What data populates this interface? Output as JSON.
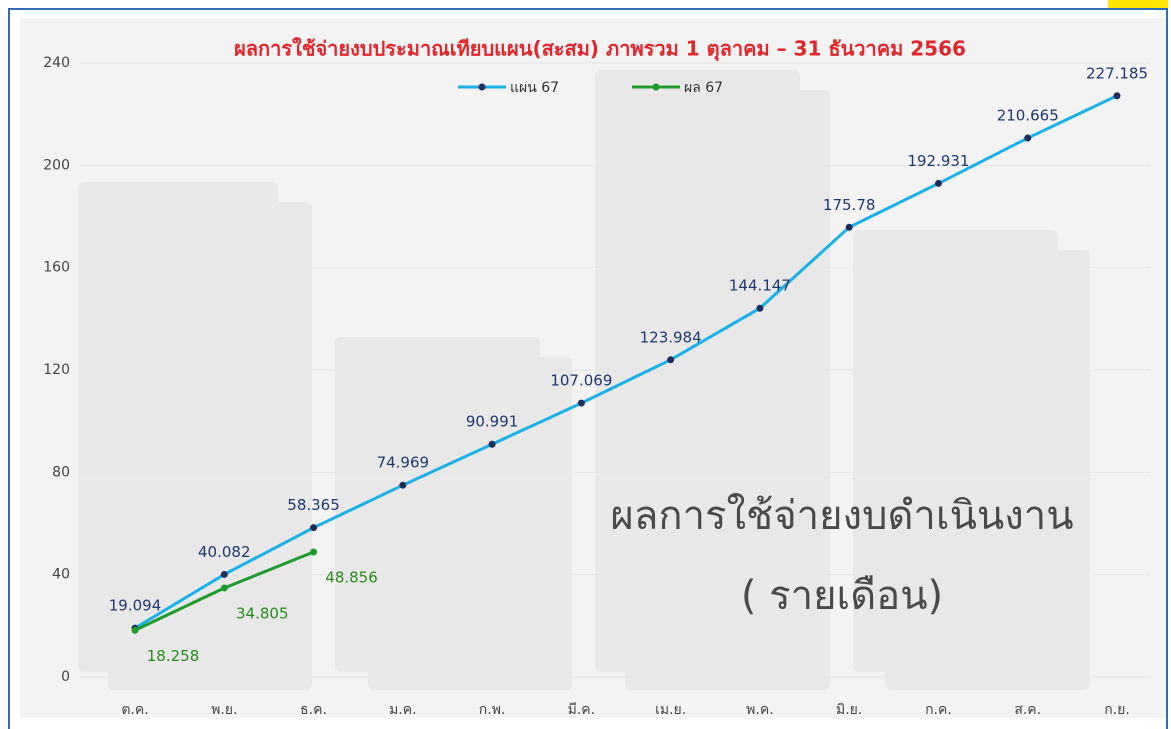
{
  "chart_data": {
    "type": "line",
    "title": "ผลการใช้จ่ายงบประมาณเทียบแผน(สะสม) ภาพรวม 1 ตุลาคม  – 31 ธันวาคม 2566",
    "annotations": [
      "ผลการใช้จ่ายงบดำเนินงาน",
      "( รายเดือน)"
    ],
    "categories": [
      "ต.ค.",
      "พ.ย.",
      "ธ.ค.",
      "ม.ค.",
      "ก.พ.",
      "มี.ค.",
      "เม.ย.",
      "พ.ค.",
      "มิ.ย.",
      "ก.ค.",
      "ส.ค.",
      "ก.ย."
    ],
    "series": [
      {
        "name": "แผน 67",
        "color": "#1ab0e8",
        "marker_color": "#1f2d5c",
        "label_color": "#1f3870",
        "values": [
          19.094,
          40.082,
          58.365,
          74.969,
          90.991,
          107.069,
          123.984,
          144.147,
          175.78,
          192.931,
          210.665,
          227.185
        ]
      },
      {
        "name": "ผล 67",
        "color": "#1e9a2e",
        "marker_color": "#1e9a2e",
        "label_color": "#2a8a1e",
        "values": [
          18.258,
          34.805,
          48.856,
          null,
          null,
          null,
          null,
          null,
          null,
          null,
          null,
          null
        ]
      }
    ],
    "ylim": [
      0,
      240
    ],
    "yticks": [
      0,
      40,
      80,
      120,
      160,
      200,
      240
    ],
    "grid": true,
    "legend": "top"
  }
}
